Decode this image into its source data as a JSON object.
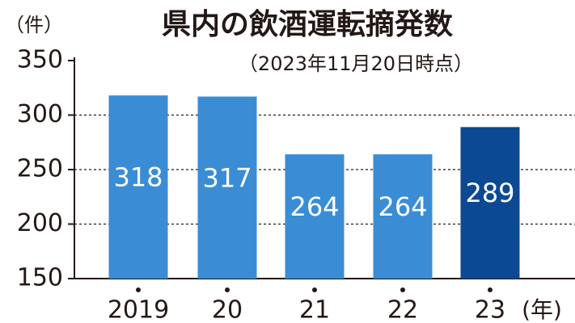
{
  "chart_data": {
    "type": "bar",
    "title": "県内の飲酒運転摘発数",
    "subtitle": "（2023年11月20日時点）",
    "y_unit": "（件）",
    "x_unit": "(年)",
    "categories": [
      "2019",
      "20",
      "21",
      "22",
      "23"
    ],
    "values": [
      318,
      317,
      264,
      264,
      289
    ],
    "colors": [
      "#3a8dd5",
      "#3a8dd5",
      "#3a8dd5",
      "#3a8dd5",
      "#0b4a93"
    ],
    "ylim": [
      150,
      350
    ],
    "yticks": [
      150,
      200,
      250,
      300,
      350
    ],
    "grid": true
  }
}
